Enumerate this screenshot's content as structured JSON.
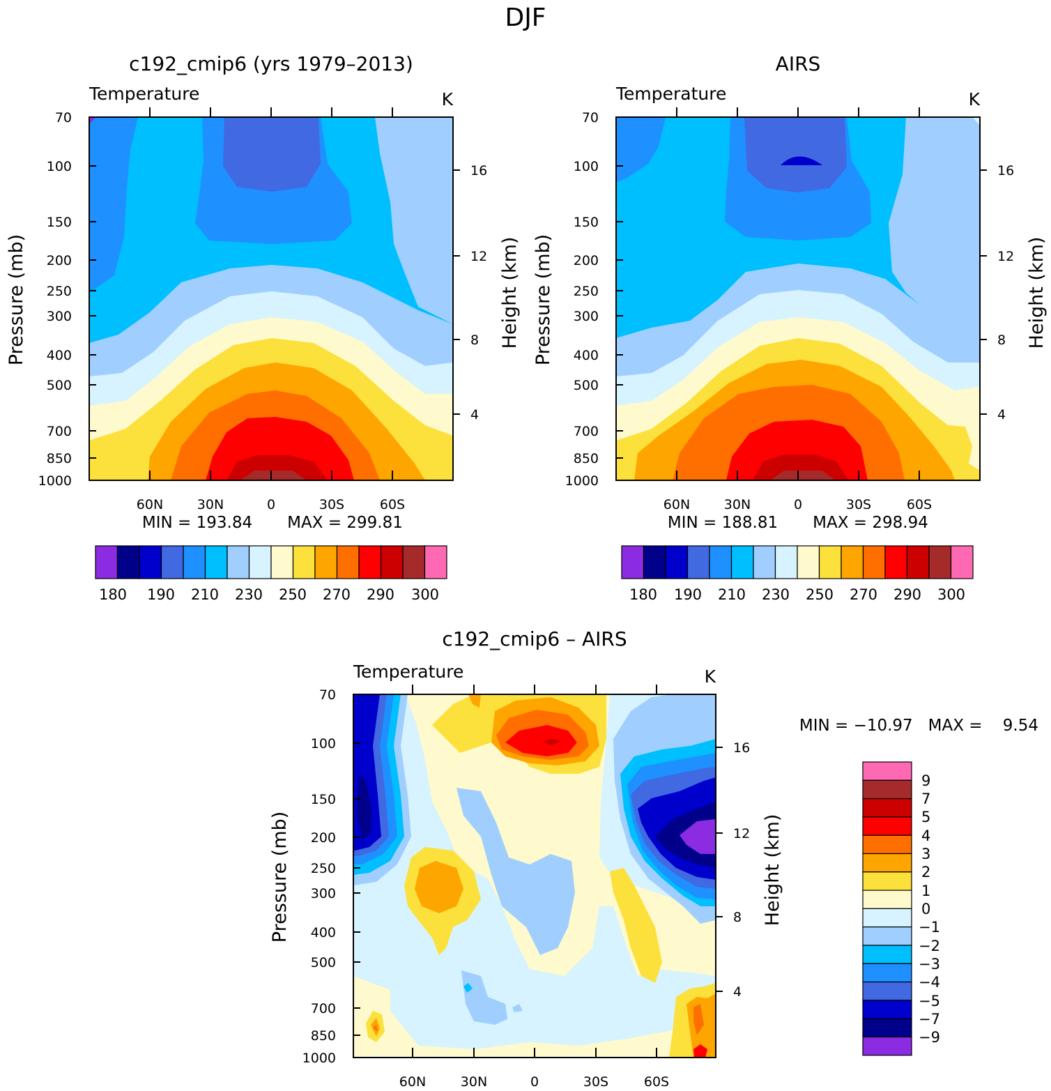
{
  "figure_title": "DJF",
  "chart_data": [
    {
      "type": "heatmap",
      "panel_title": "c192_cmip6 (yrs 1979–2013)",
      "variable": "Temperature",
      "units": "K",
      "ylabel": "Pressure (mb)",
      "ylabel_right": "Height (km)",
      "y_ticks": [
        "70",
        "100",
        "150",
        "200",
        "250",
        "300",
        "400",
        "500",
        "700",
        "850",
        "1000"
      ],
      "y_ticks_right": [
        "16",
        "12",
        "8",
        "4"
      ],
      "x_ticks": [
        "60N",
        "30N",
        "0",
        "30S",
        "60S"
      ],
      "min_label": "MIN = 193.84",
      "max_label": "MAX = 299.81",
      "min": 193.84,
      "max": 299.81,
      "colorbar_labels": [
        "180",
        "190",
        "210",
        "230",
        "250",
        "270",
        "290",
        "300"
      ]
    },
    {
      "type": "heatmap",
      "panel_title": "AIRS",
      "variable": "Temperature",
      "units": "K",
      "ylabel": "Pressure (mb)",
      "ylabel_right": "Height (km)",
      "y_ticks": [
        "70",
        "100",
        "150",
        "200",
        "250",
        "300",
        "400",
        "500",
        "700",
        "850",
        "1000"
      ],
      "y_ticks_right": [
        "16",
        "12",
        "8",
        "4"
      ],
      "x_ticks": [
        "60N",
        "30N",
        "0",
        "30S",
        "60S"
      ],
      "min_label": "MIN = 188.81",
      "max_label": "MAX = 298.94",
      "min": 188.81,
      "max": 298.94,
      "colorbar_labels": [
        "180",
        "190",
        "210",
        "230",
        "250",
        "270",
        "290",
        "300"
      ]
    },
    {
      "type": "heatmap",
      "panel_title": "c192_cmip6 – AIRS",
      "variable": "Temperature",
      "units": "K",
      "ylabel": "Pressure (mb)",
      "ylabel_right": "Height (km)",
      "y_ticks": [
        "70",
        "100",
        "150",
        "200",
        "250",
        "300",
        "400",
        "500",
        "700",
        "850",
        "1000"
      ],
      "y_ticks_right": [
        "16",
        "12",
        "8",
        "4"
      ],
      "x_ticks": [
        "60N",
        "30N",
        "0",
        "30S",
        "60S"
      ],
      "minmax_label": "MIN = −10.97   MAX =    9.54",
      "min": -10.97,
      "max": 9.54,
      "colorbar_labels": [
        "9",
        "7",
        "5",
        "4",
        "3",
        "2",
        "1",
        "0",
        "−1",
        "−2",
        "−3",
        "−4",
        "−5",
        "−7",
        "−9"
      ]
    }
  ],
  "palette": {
    "temperature": [
      "#8b2be2",
      "#00008b",
      "#0000cd",
      "#4169e1",
      "#1e90ff",
      "#00bfff",
      "#a0cfff",
      "#d6f3ff",
      "#fffacd",
      "#fce03c",
      "#ffa500",
      "#ff6f00",
      "#ff0000",
      "#cd0000",
      "#a52a2a",
      "#ff69b4"
    ],
    "difference": [
      "#ff69b4",
      "#a52a2a",
      "#cd0000",
      "#ff0000",
      "#ff6f00",
      "#ffa500",
      "#fce03c",
      "#fffacd",
      "#d6f3ff",
      "#a0cfff",
      "#00bfff",
      "#1e90ff",
      "#4169e1",
      "#0000cd",
      "#00008b",
      "#8b2be2"
    ]
  }
}
